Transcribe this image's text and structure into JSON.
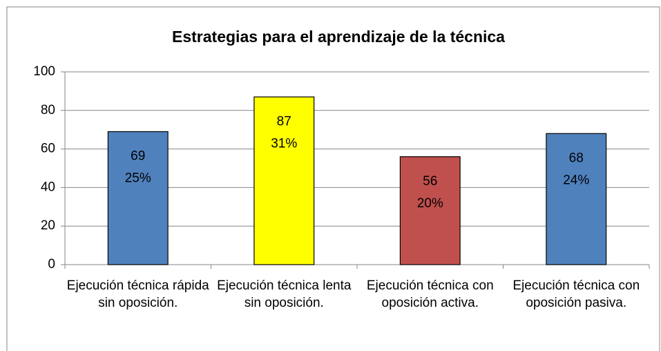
{
  "chart_data": {
    "type": "bar",
    "title": "Estrategias para el aprendizaje de la técnica",
    "categories": [
      "Ejecución técnica rápida sin oposición.",
      "Ejecución técnica lenta sin oposición.",
      "Ejecución técnica con oposición activa.",
      "Ejecución técnica con oposición pasiva."
    ],
    "values": [
      69,
      87,
      56,
      68
    ],
    "percent_labels": [
      "25%",
      "31%",
      "20%",
      "24%"
    ],
    "colors": [
      "#4f81bd",
      "#ffff00",
      "#c0504d",
      "#4f81bd"
    ],
    "ylim": [
      0,
      100
    ],
    "yticks": [
      0,
      20,
      40,
      60,
      80,
      100
    ],
    "grid": true
  }
}
